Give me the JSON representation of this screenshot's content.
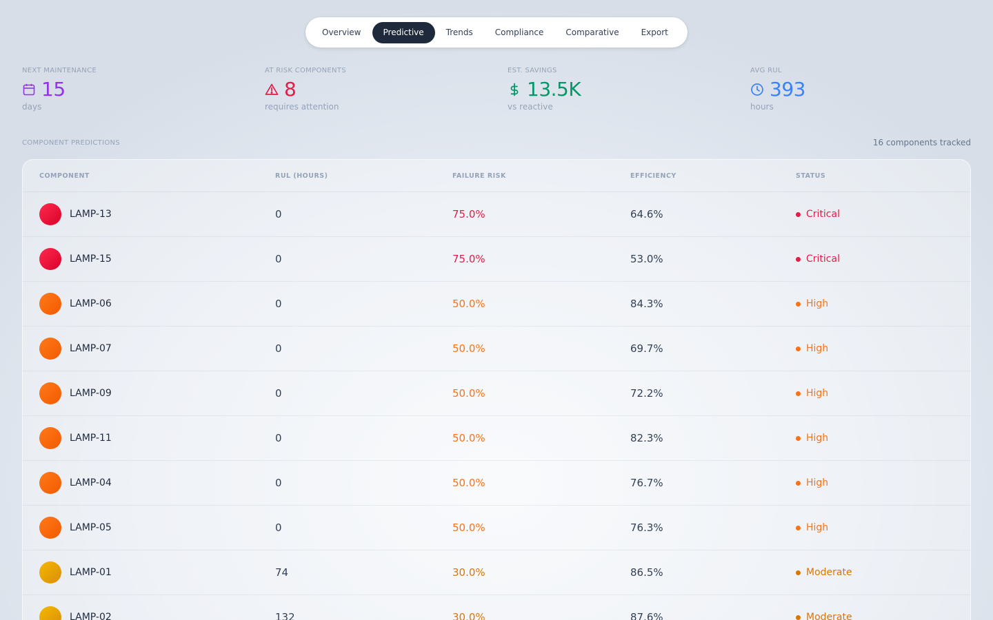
{
  "tabs": [
    {
      "label": "Overview",
      "active": false
    },
    {
      "label": "Predictive",
      "active": true
    },
    {
      "label": "Trends",
      "active": false
    },
    {
      "label": "Compliance",
      "active": false
    },
    {
      "label": "Comparative",
      "active": false
    },
    {
      "label": "Export",
      "active": false
    }
  ],
  "stats": [
    {
      "label": "NEXT MAINTENANCE",
      "value": "15",
      "sub": "days",
      "icon": "calendar-icon",
      "color": "#9333ea"
    },
    {
      "label": "AT RISK COMPONENTS",
      "value": "8",
      "sub": "requires attention",
      "icon": "warning-triangle-icon",
      "color": "#e11d48"
    },
    {
      "label": "EST. SAVINGS",
      "value": "13.5K",
      "sub": "vs reactive",
      "icon": "dollar-icon",
      "color": "#059669"
    },
    {
      "label": "AVG RUL",
      "value": "393",
      "sub": "hours",
      "icon": "clock-icon",
      "color": "#3b82f6"
    }
  ],
  "section": {
    "label": "COMPONENT PREDICTIONS",
    "count": "16 components tracked"
  },
  "table": {
    "headers": [
      "COMPONENT",
      "RUL (HOURS)",
      "FAILURE RISK",
      "EFFICIENCY",
      "STATUS"
    ],
    "rows": [
      {
        "name": "LAMP-13",
        "rul": "0",
        "risk": "75.0%",
        "eff": "64.6%",
        "status": "Critical"
      },
      {
        "name": "LAMP-15",
        "rul": "0",
        "risk": "75.0%",
        "eff": "53.0%",
        "status": "Critical"
      },
      {
        "name": "LAMP-06",
        "rul": "0",
        "risk": "50.0%",
        "eff": "84.3%",
        "status": "High"
      },
      {
        "name": "LAMP-07",
        "rul": "0",
        "risk": "50.0%",
        "eff": "69.7%",
        "status": "High"
      },
      {
        "name": "LAMP-09",
        "rul": "0",
        "risk": "50.0%",
        "eff": "72.2%",
        "status": "High"
      },
      {
        "name": "LAMP-11",
        "rul": "0",
        "risk": "50.0%",
        "eff": "82.3%",
        "status": "High"
      },
      {
        "name": "LAMP-04",
        "rul": "0",
        "risk": "50.0%",
        "eff": "76.7%",
        "status": "High"
      },
      {
        "name": "LAMP-05",
        "rul": "0",
        "risk": "50.0%",
        "eff": "76.3%",
        "status": "High"
      },
      {
        "name": "LAMP-01",
        "rul": "74",
        "risk": "30.0%",
        "eff": "86.5%",
        "status": "Moderate"
      },
      {
        "name": "LAMP-02",
        "rul": "132",
        "risk": "30.0%",
        "eff": "87.6%",
        "status": "Moderate"
      }
    ]
  },
  "status_colors": {
    "Critical": "#e11d48",
    "High": "#f97316",
    "Moderate": "#d97706"
  },
  "status_gradients": {
    "Critical": [
      "#ff2a4e",
      "#d9002a"
    ],
    "High": [
      "#ff7a1a",
      "#f25a00"
    ],
    "Moderate": [
      "#f5b800",
      "#d98e0a"
    ]
  }
}
